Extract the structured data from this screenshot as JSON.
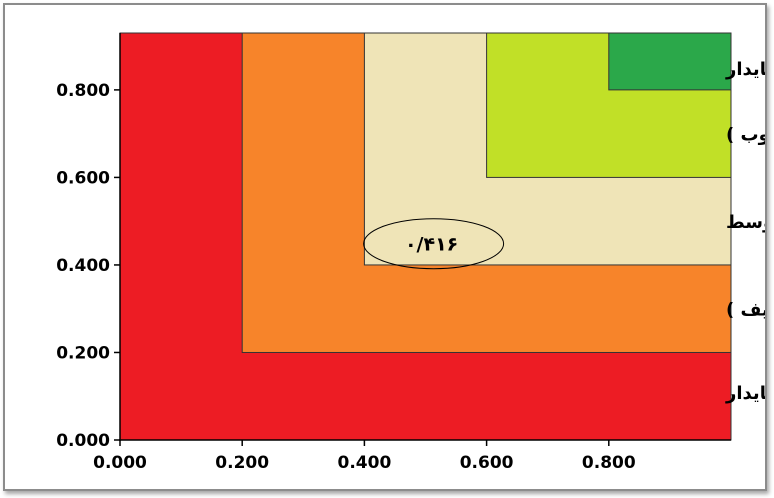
{
  "chart_data": {
    "type": "area",
    "title": "",
    "xlabel": "",
    "ylabel": "",
    "xlim": [
      0,
      1
    ],
    "ylim": [
      0,
      0.93
    ],
    "x_ticks": [
      "0.000",
      "0.200",
      "0.400",
      "0.600",
      "0.800"
    ],
    "y_ticks": [
      "0.000",
      "0.200",
      "0.400",
      "0.600",
      "0.800"
    ],
    "grid": false,
    "zones": [
      {
        "name": "نا پایدار",
        "x_from": 0.0,
        "y_from": 0.0,
        "color": "#ed1c24"
      },
      {
        "name": "ناپایداری بالقوه (ضعیف )",
        "x_from": 0.2,
        "y_from": 0.2,
        "color": "#f7842a"
      },
      {
        "name": "متوسط",
        "x_from": 0.4,
        "y_from": 0.4,
        "color": "#efe4b7"
      },
      {
        "name": "پایداری بالقوه (خوب )",
        "x_from": 0.6,
        "y_from": 0.6,
        "color": "#c1e027"
      },
      {
        "name": "پایدار",
        "x_from": 0.8,
        "y_from": 0.8,
        "color": "#2ba84a"
      }
    ],
    "annotation": {
      "text": "۰/۴۱۶",
      "x": 0.51,
      "y": 0.46
    }
  }
}
